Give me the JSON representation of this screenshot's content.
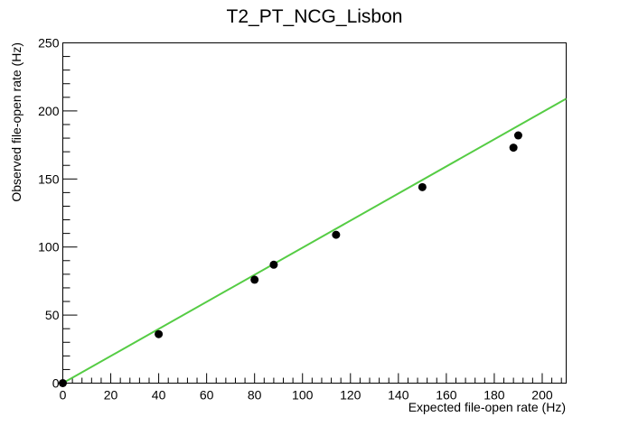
{
  "chart_data": {
    "type": "scatter",
    "title": "T2_PT_NCG_Lisbon",
    "xlabel": "Expected file-open rate (Hz)",
    "ylabel": "Observed file-open rate (Hz)",
    "xlim": [
      0,
      210
    ],
    "ylim": [
      0,
      250
    ],
    "xticks": [
      0,
      20,
      40,
      60,
      80,
      100,
      120,
      140,
      160,
      180,
      200
    ],
    "yticks": [
      0,
      50,
      100,
      150,
      200,
      250
    ],
    "grid": false,
    "series": [
      {
        "points": [
          {
            "x": 0,
            "y": 0
          },
          {
            "x": 40,
            "y": 36
          },
          {
            "x": 80,
            "y": 76
          },
          {
            "x": 88,
            "y": 87
          },
          {
            "x": 114,
            "y": 109
          },
          {
            "x": 150,
            "y": 144
          },
          {
            "x": 188,
            "y": 173
          },
          {
            "x": 190,
            "y": 182
          }
        ]
      }
    ],
    "fit_line": {
      "x": [
        0,
        210
      ],
      "y": [
        0,
        209
      ],
      "color": "#55cc44"
    },
    "marker_color": "#000000"
  }
}
